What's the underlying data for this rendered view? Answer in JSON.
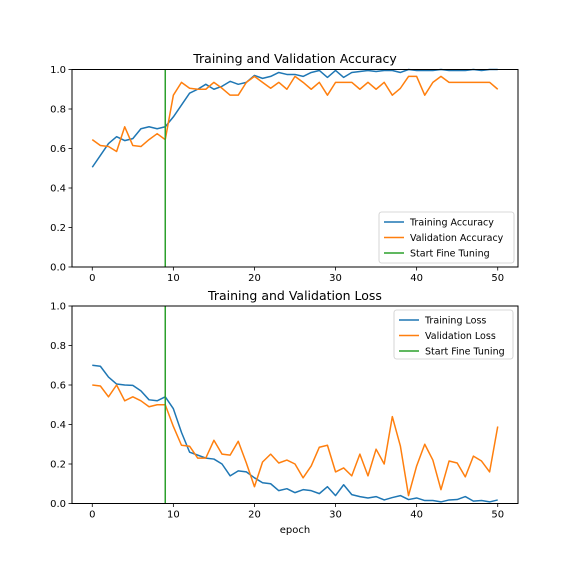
{
  "chart_data": [
    {
      "type": "line",
      "title": "Training and Validation Accuracy",
      "xlabel": "",
      "ylabel": "",
      "xlim": [
        -2.5,
        52.5
      ],
      "ylim": [
        0,
        1.0
      ],
      "xticks": [
        0,
        10,
        20,
        30,
        40,
        50
      ],
      "yticks": [
        0.0,
        0.2,
        0.4,
        0.6,
        0.8,
        1.0
      ],
      "xtick_labels": [
        "0",
        "10",
        "20",
        "30",
        "40",
        "50"
      ],
      "ytick_labels": [
        "0.0",
        "0.2",
        "0.4",
        "0.6",
        "0.8",
        "1.0"
      ],
      "grid": false,
      "legend_position": "lower-right",
      "x": [
        0,
        1,
        2,
        3,
        4,
        5,
        6,
        7,
        8,
        9,
        10,
        11,
        12,
        13,
        14,
        15,
        16,
        17,
        18,
        19,
        20,
        21,
        22,
        23,
        24,
        25,
        26,
        27,
        28,
        29,
        30,
        31,
        32,
        33,
        34,
        35,
        36,
        37,
        38,
        39,
        40,
        41,
        42,
        43,
        44,
        45,
        46,
        47,
        48,
        49,
        50
      ],
      "series": [
        {
          "name": "Training Accuracy",
          "color": "#1f77b4",
          "values": [
            0.505,
            0.565,
            0.625,
            0.66,
            0.64,
            0.65,
            0.7,
            0.71,
            0.7,
            0.71,
            0.76,
            0.82,
            0.88,
            0.9,
            0.925,
            0.9,
            0.915,
            0.94,
            0.925,
            0.935,
            0.97,
            0.955,
            0.965,
            0.985,
            0.975,
            0.975,
            0.965,
            0.985,
            0.995,
            0.96,
            0.995,
            0.96,
            0.985,
            0.99,
            0.995,
            0.99,
            0.995,
            0.995,
            0.985,
            1.0,
            0.995,
            0.995,
            0.995,
            1.0,
            0.995,
            0.995,
            0.995,
            1.0,
            0.995,
            1.0,
            1.0
          ]
        },
        {
          "name": "Validation Accuracy",
          "color": "#ff7f0e",
          "values": [
            0.645,
            0.615,
            0.61,
            0.585,
            0.71,
            0.615,
            0.61,
            0.645,
            0.675,
            0.645,
            0.87,
            0.935,
            0.905,
            0.9,
            0.9,
            0.935,
            0.905,
            0.87,
            0.87,
            0.935,
            0.965,
            0.935,
            0.905,
            0.935,
            0.9,
            0.965,
            0.935,
            0.9,
            0.935,
            0.87,
            0.935,
            0.935,
            0.935,
            0.9,
            0.935,
            0.9,
            0.935,
            0.87,
            0.905,
            0.965,
            0.965,
            0.87,
            0.935,
            0.965,
            0.935,
            0.935,
            0.935,
            0.935,
            0.935,
            0.935,
            0.9
          ]
        }
      ],
      "vline": {
        "name": "Start Fine Tuning",
        "x": 9,
        "color": "#2ca02c"
      },
      "legend": [
        "Training Accuracy",
        "Validation Accuracy",
        "Start Fine Tuning"
      ]
    },
    {
      "type": "line",
      "title": "Training and Validation Loss",
      "xlabel": "epoch",
      "ylabel": "",
      "xlim": [
        -2.5,
        52.5
      ],
      "ylim": [
        0,
        1.0
      ],
      "xticks": [
        0,
        10,
        20,
        30,
        40,
        50
      ],
      "yticks": [
        0.0,
        0.2,
        0.4,
        0.6,
        0.8,
        1.0
      ],
      "xtick_labels": [
        "0",
        "10",
        "20",
        "30",
        "40",
        "50"
      ],
      "ytick_labels": [
        "0.0",
        "0.2",
        "0.4",
        "0.6",
        "0.8",
        "1.0"
      ],
      "grid": false,
      "legend_position": "upper-right",
      "x": [
        0,
        1,
        2,
        3,
        4,
        5,
        6,
        7,
        8,
        9,
        10,
        11,
        12,
        13,
        14,
        15,
        16,
        17,
        18,
        19,
        20,
        21,
        22,
        23,
        24,
        25,
        26,
        27,
        28,
        29,
        30,
        31,
        32,
        33,
        34,
        35,
        36,
        37,
        38,
        39,
        40,
        41,
        42,
        43,
        44,
        45,
        46,
        47,
        48,
        49,
        50
      ],
      "series": [
        {
          "name": "Training Loss",
          "color": "#1f77b4",
          "values": [
            0.7,
            0.695,
            0.64,
            0.605,
            0.6,
            0.598,
            0.57,
            0.525,
            0.52,
            0.54,
            0.48,
            0.36,
            0.26,
            0.245,
            0.23,
            0.225,
            0.2,
            0.14,
            0.165,
            0.16,
            0.13,
            0.105,
            0.1,
            0.065,
            0.075,
            0.055,
            0.07,
            0.065,
            0.05,
            0.085,
            0.04,
            0.095,
            0.045,
            0.035,
            0.028,
            0.035,
            0.018,
            0.03,
            0.04,
            0.02,
            0.028,
            0.015,
            0.015,
            0.008,
            0.018,
            0.02,
            0.035,
            0.012,
            0.015,
            0.008,
            0.018
          ]
        },
        {
          "name": "Validation Loss",
          "color": "#ff7f0e",
          "values": [
            0.6,
            0.595,
            0.54,
            0.6,
            0.52,
            0.54,
            0.52,
            0.49,
            0.5,
            0.5,
            0.39,
            0.295,
            0.29,
            0.23,
            0.23,
            0.32,
            0.25,
            0.245,
            0.315,
            0.205,
            0.085,
            0.21,
            0.25,
            0.205,
            0.22,
            0.2,
            0.13,
            0.19,
            0.285,
            0.295,
            0.16,
            0.18,
            0.14,
            0.25,
            0.14,
            0.275,
            0.2,
            0.44,
            0.29,
            0.04,
            0.19,
            0.3,
            0.22,
            0.07,
            0.215,
            0.205,
            0.135,
            0.24,
            0.215,
            0.16,
            0.39
          ]
        }
      ],
      "vline": {
        "name": "Start Fine Tuning",
        "x": 9,
        "color": "#2ca02c"
      },
      "legend": [
        "Training Loss",
        "Validation Loss",
        "Start Fine Tuning"
      ]
    }
  ]
}
